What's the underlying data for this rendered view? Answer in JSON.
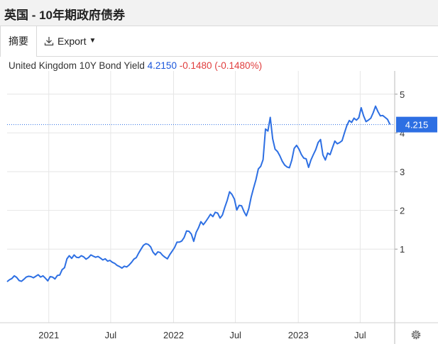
{
  "window": {
    "title": "英国 - 10年期政府债券"
  },
  "tabs": {
    "summary": "摘要",
    "export": "Export"
  },
  "header": {
    "instrument": "United Kingdom 10Y Bond Yield",
    "last": "4.2150",
    "change": "-0.1480",
    "change_pct": "(-0.1480%)"
  },
  "colors": {
    "line": "#2d6fe3",
    "last_label_bg": "#2d6fe3",
    "change": "#e03c3c",
    "grid": "#e6e6e6"
  },
  "icons": {
    "export": "download-icon",
    "settings": "gear-icon"
  },
  "chart_data": {
    "type": "line",
    "title": "United Kingdom 10Y Bond Yield",
    "xlabel": "",
    "ylabel": "",
    "ylim": [
      -0.9,
      5.6
    ],
    "xlim": [
      "2020-09-01",
      "2023-10-10"
    ],
    "x_ticks": [
      {
        "label": "2021",
        "x": "2021-01-01"
      },
      {
        "label": "Jul",
        "x": "2021-07-01"
      },
      {
        "label": "2022",
        "x": "2022-01-01"
      },
      {
        "label": "Jul",
        "x": "2022-07-01"
      },
      {
        "label": "2023",
        "x": "2023-01-01"
      },
      {
        "label": "Jul",
        "x": "2023-07-01"
      }
    ],
    "y_ticks": [
      1,
      2,
      3,
      4,
      5
    ],
    "grid": true,
    "last_value_label": "4.215",
    "last_value": 4.215,
    "series": [
      {
        "values": [
          [
            "2020-09-01",
            0.16
          ],
          [
            "2020-09-08",
            0.21
          ],
          [
            "2020-09-15",
            0.24
          ],
          [
            "2020-09-22",
            0.31
          ],
          [
            "2020-09-29",
            0.27
          ],
          [
            "2020-10-06",
            0.19
          ],
          [
            "2020-10-13",
            0.17
          ],
          [
            "2020-10-20",
            0.22
          ],
          [
            "2020-10-27",
            0.28
          ],
          [
            "2020-11-03",
            0.3
          ],
          [
            "2020-11-10",
            0.29
          ],
          [
            "2020-11-17",
            0.26
          ],
          [
            "2020-11-24",
            0.3
          ],
          [
            "2020-12-01",
            0.34
          ],
          [
            "2020-12-08",
            0.28
          ],
          [
            "2020-12-15",
            0.31
          ],
          [
            "2020-12-22",
            0.25
          ],
          [
            "2020-12-29",
            0.18
          ],
          [
            "2021-01-05",
            0.29
          ],
          [
            "2021-01-12",
            0.28
          ],
          [
            "2021-01-19",
            0.23
          ],
          [
            "2021-01-26",
            0.32
          ],
          [
            "2021-02-02",
            0.33
          ],
          [
            "2021-02-09",
            0.47
          ],
          [
            "2021-02-16",
            0.52
          ],
          [
            "2021-02-23",
            0.75
          ],
          [
            "2021-03-02",
            0.83
          ],
          [
            "2021-03-09",
            0.76
          ],
          [
            "2021-03-16",
            0.85
          ],
          [
            "2021-03-23",
            0.79
          ],
          [
            "2021-03-30",
            0.78
          ],
          [
            "2021-04-06",
            0.83
          ],
          [
            "2021-04-13",
            0.8
          ],
          [
            "2021-04-20",
            0.74
          ],
          [
            "2021-04-27",
            0.78
          ],
          [
            "2021-05-04",
            0.85
          ],
          [
            "2021-05-11",
            0.82
          ],
          [
            "2021-05-18",
            0.79
          ],
          [
            "2021-05-25",
            0.81
          ],
          [
            "2021-06-01",
            0.77
          ],
          [
            "2021-06-08",
            0.72
          ],
          [
            "2021-06-15",
            0.75
          ],
          [
            "2021-06-22",
            0.69
          ],
          [
            "2021-06-29",
            0.71
          ],
          [
            "2021-07-06",
            0.66
          ],
          [
            "2021-07-13",
            0.63
          ],
          [
            "2021-07-20",
            0.58
          ],
          [
            "2021-07-27",
            0.55
          ],
          [
            "2021-08-03",
            0.51
          ],
          [
            "2021-08-10",
            0.56
          ],
          [
            "2021-08-17",
            0.54
          ],
          [
            "2021-08-24",
            0.59
          ],
          [
            "2021-08-31",
            0.66
          ],
          [
            "2021-09-07",
            0.74
          ],
          [
            "2021-09-14",
            0.78
          ],
          [
            "2021-09-21",
            0.9
          ],
          [
            "2021-09-28",
            1.0
          ],
          [
            "2021-10-05",
            1.1
          ],
          [
            "2021-10-12",
            1.14
          ],
          [
            "2021-10-19",
            1.12
          ],
          [
            "2021-10-26",
            1.06
          ],
          [
            "2021-11-02",
            0.92
          ],
          [
            "2021-11-09",
            0.85
          ],
          [
            "2021-11-16",
            0.93
          ],
          [
            "2021-11-23",
            0.91
          ],
          [
            "2021-11-30",
            0.84
          ],
          [
            "2021-12-07",
            0.79
          ],
          [
            "2021-12-14",
            0.75
          ],
          [
            "2021-12-21",
            0.86
          ],
          [
            "2021-12-28",
            0.95
          ],
          [
            "2022-01-04",
            1.04
          ],
          [
            "2022-01-11",
            1.18
          ],
          [
            "2022-01-18",
            1.18
          ],
          [
            "2022-01-25",
            1.21
          ],
          [
            "2022-02-01",
            1.3
          ],
          [
            "2022-02-08",
            1.47
          ],
          [
            "2022-02-15",
            1.46
          ],
          [
            "2022-02-22",
            1.39
          ],
          [
            "2022-03-01",
            1.2
          ],
          [
            "2022-03-08",
            1.43
          ],
          [
            "2022-03-15",
            1.55
          ],
          [
            "2022-03-22",
            1.71
          ],
          [
            "2022-03-29",
            1.63
          ],
          [
            "2022-04-05",
            1.71
          ],
          [
            "2022-04-12",
            1.8
          ],
          [
            "2022-04-19",
            1.9
          ],
          [
            "2022-04-26",
            1.84
          ],
          [
            "2022-05-03",
            1.95
          ],
          [
            "2022-05-10",
            1.93
          ],
          [
            "2022-05-17",
            1.8
          ],
          [
            "2022-05-24",
            1.88
          ],
          [
            "2022-05-31",
            2.08
          ],
          [
            "2022-06-07",
            2.26
          ],
          [
            "2022-06-14",
            2.48
          ],
          [
            "2022-06-21",
            2.41
          ],
          [
            "2022-06-28",
            2.29
          ],
          [
            "2022-07-05",
            2.01
          ],
          [
            "2022-07-12",
            2.13
          ],
          [
            "2022-07-19",
            2.12
          ],
          [
            "2022-07-26",
            1.97
          ],
          [
            "2022-08-02",
            1.86
          ],
          [
            "2022-08-09",
            2.04
          ],
          [
            "2022-08-16",
            2.34
          ],
          [
            "2022-08-23",
            2.57
          ],
          [
            "2022-08-30",
            2.79
          ],
          [
            "2022-09-06",
            3.07
          ],
          [
            "2022-09-13",
            3.14
          ],
          [
            "2022-09-20",
            3.31
          ],
          [
            "2022-09-27",
            4.1
          ],
          [
            "2022-10-04",
            4.05
          ],
          [
            "2022-10-11",
            4.4
          ],
          [
            "2022-10-18",
            3.85
          ],
          [
            "2022-10-25",
            3.58
          ],
          [
            "2022-11-01",
            3.52
          ],
          [
            "2022-11-08",
            3.41
          ],
          [
            "2022-11-15",
            3.27
          ],
          [
            "2022-11-22",
            3.17
          ],
          [
            "2022-11-29",
            3.12
          ],
          [
            "2022-12-06",
            3.1
          ],
          [
            "2022-12-13",
            3.3
          ],
          [
            "2022-12-20",
            3.6
          ],
          [
            "2022-12-27",
            3.68
          ],
          [
            "2023-01-03",
            3.58
          ],
          [
            "2023-01-10",
            3.44
          ],
          [
            "2023-01-17",
            3.35
          ],
          [
            "2023-01-24",
            3.33
          ],
          [
            "2023-01-31",
            3.11
          ],
          [
            "2023-02-07",
            3.3
          ],
          [
            "2023-02-14",
            3.44
          ],
          [
            "2023-02-21",
            3.57
          ],
          [
            "2023-02-28",
            3.75
          ],
          [
            "2023-03-07",
            3.83
          ],
          [
            "2023-03-14",
            3.43
          ],
          [
            "2023-03-21",
            3.3
          ],
          [
            "2023-03-28",
            3.48
          ],
          [
            "2023-04-04",
            3.44
          ],
          [
            "2023-04-11",
            3.62
          ],
          [
            "2023-04-18",
            3.79
          ],
          [
            "2023-04-25",
            3.72
          ],
          [
            "2023-05-02",
            3.75
          ],
          [
            "2023-05-09",
            3.8
          ],
          [
            "2023-05-16",
            4.0
          ],
          [
            "2023-05-23",
            4.19
          ],
          [
            "2023-05-30",
            4.32
          ],
          [
            "2023-06-06",
            4.27
          ],
          [
            "2023-06-13",
            4.38
          ],
          [
            "2023-06-20",
            4.33
          ],
          [
            "2023-06-27",
            4.39
          ],
          [
            "2023-07-04",
            4.65
          ],
          [
            "2023-07-11",
            4.44
          ],
          [
            "2023-07-18",
            4.29
          ],
          [
            "2023-07-25",
            4.33
          ],
          [
            "2023-08-01",
            4.38
          ],
          [
            "2023-08-08",
            4.52
          ],
          [
            "2023-08-15",
            4.69
          ],
          [
            "2023-08-22",
            4.55
          ],
          [
            "2023-08-29",
            4.44
          ],
          [
            "2023-09-05",
            4.45
          ],
          [
            "2023-09-12",
            4.4
          ],
          [
            "2023-09-19",
            4.35
          ],
          [
            "2023-09-26",
            4.22
          ]
        ]
      }
    ]
  }
}
